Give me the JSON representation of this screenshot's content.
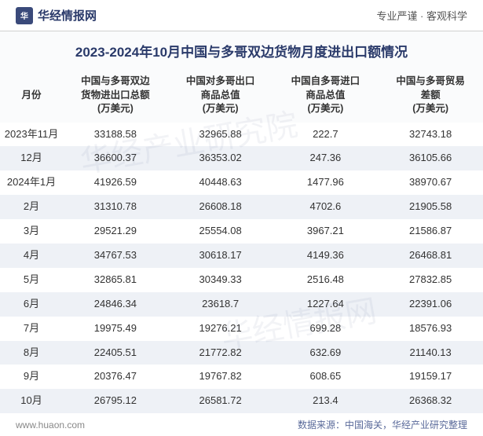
{
  "header": {
    "logo_text": "华",
    "brand": "华经情报网",
    "tagline": "专业严谨 · 客观科学"
  },
  "title": "2023-2024年10月中国与多哥双边货物月度进出口额情况",
  "columns": [
    "月份",
    "中国与多哥双边\n货物进出口总额\n(万美元)",
    "中国对多哥出口\n商品总值\n(万美元)",
    "中国自多哥进口\n商品总值\n(万美元)",
    "中国与多哥贸易\n差额\n(万美元)"
  ],
  "rows": [
    [
      "2023年11月",
      "33188.58",
      "32965.88",
      "222.7",
      "32743.18"
    ],
    [
      "12月",
      "36600.37",
      "36353.02",
      "247.36",
      "36105.66"
    ],
    [
      "2024年1月",
      "41926.59",
      "40448.63",
      "1477.96",
      "38970.67"
    ],
    [
      "2月",
      "31310.78",
      "26608.18",
      "4702.6",
      "21905.58"
    ],
    [
      "3月",
      "29521.29",
      "25554.08",
      "3967.21",
      "21586.87"
    ],
    [
      "4月",
      "34767.53",
      "30618.17",
      "4149.36",
      "26468.81"
    ],
    [
      "5月",
      "32865.81",
      "30349.33",
      "2516.48",
      "27832.85"
    ],
    [
      "6月",
      "24846.34",
      "23618.7",
      "1227.64",
      "22391.06"
    ],
    [
      "7月",
      "19975.49",
      "19276.21",
      "699.28",
      "18576.93"
    ],
    [
      "8月",
      "22405.51",
      "21772.82",
      "632.69",
      "21140.13"
    ],
    [
      "9月",
      "20376.47",
      "19767.82",
      "608.65",
      "19159.17"
    ],
    [
      "10月",
      "26795.12",
      "26581.72",
      "213.4",
      "26368.32"
    ]
  ],
  "footer": {
    "site": "www.huaon.com",
    "source": "数据来源：中国海关，华经产业研究整理"
  },
  "styling": {
    "title_color": "#2a3a6a",
    "header_bg": "#fafbfc",
    "row_even_bg": "#eef1f6",
    "row_odd_bg": "#ffffff",
    "text_color": "#333333",
    "footer_color": "#5a6a9a",
    "title_fontsize": 17,
    "header_fontsize": 12.5,
    "cell_fontsize": 13
  }
}
